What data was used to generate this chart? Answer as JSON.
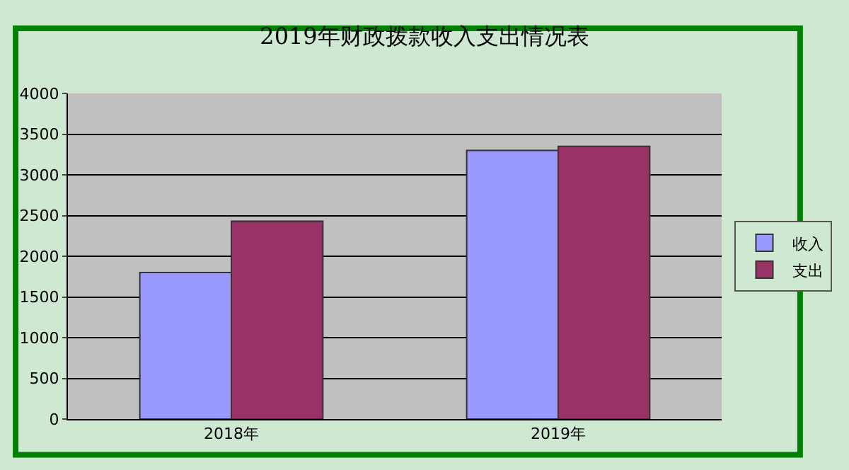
{
  "chart_data": {
    "type": "bar",
    "title": "2019年财政拨款收入支出情况表",
    "categories": [
      "2018年",
      "2019年"
    ],
    "series": [
      {
        "name": "收入",
        "color": "#9999ff",
        "values": [
          1800,
          3300
        ]
      },
      {
        "name": "支出",
        "color": "#993366",
        "values": [
          2430,
          3350
        ]
      }
    ],
    "ylim": [
      0,
      4000
    ],
    "yticks": [
      0,
      500,
      1000,
      1500,
      2000,
      2500,
      3000,
      3500,
      4000
    ],
    "grid": "y",
    "legend": "right"
  }
}
